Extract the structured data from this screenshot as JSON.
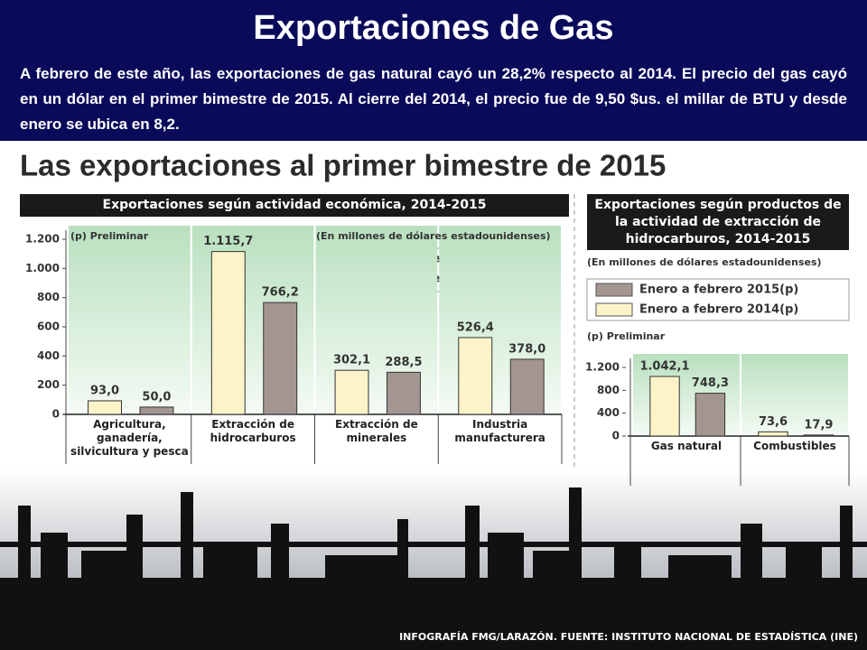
{
  "slide_title": "Exportaciones de Gas",
  "slide_text": "A febrero de este año, las exportaciones de gas natural cayó un 28,2% respecto al 2014. El precio del gas cayó en un dólar en el primer bimestre de 2015. Al cierre del 2014, el precio fue de 9,50 $us. el millar de BTU y desde enero se ubica en 8,2.",
  "infographic_title": "Las exportaciones al primer bimestre de 2015",
  "source": "INFOGRAFÍA FMG/LARAZÓN. FUENTE: INSTITUTO NACIONAL DE ESTADÍSTICA (INE)",
  "chart_data": [
    {
      "type": "bar",
      "title": "Exportaciones según actividad económica, 2014-2015",
      "note": "(p) Preliminar",
      "unit": "(En millones de dólares estadounidenses)",
      "categories": [
        "Agricultura, ganadería, silvicultura y pesca",
        "Extracción de hidrocarburos",
        "Extracción de minerales",
        "Industria manufacturera"
      ],
      "series": [
        {
          "name": "Enero a febrero 2015(p)",
          "color": "#a39690",
          "values": [
            50.0,
            766.2,
            288.5,
            378.0
          ],
          "value_labels": [
            "50,0",
            "766,2",
            "288,5",
            "378,0"
          ]
        },
        {
          "name": "Enero a febrero 2014(p)",
          "color": "#fdf3c8",
          "values": [
            93.0,
            1115.7,
            302.1,
            526.4
          ],
          "value_labels": [
            "93,0",
            "1.115,7",
            "302,1",
            "526,4"
          ]
        }
      ],
      "ylim": [
        0,
        1200
      ],
      "yticks": [
        0,
        200,
        400,
        600,
        800,
        {
          "value": 1000,
          "label": "1.000"
        },
        {
          "value": 1200,
          "label": "1.200"
        }
      ]
    },
    {
      "type": "bar",
      "title": "Exportaciones según productos de la actividad de extracción de hidrocarburos, 2014-2015",
      "note": "(p) Preliminar",
      "unit": "(En millones de dólares estadounidenses)",
      "categories": [
        "Gas natural",
        "Combustibles"
      ],
      "series": [
        {
          "name": "Enero a febrero 2015(p)",
          "color": "#a39690",
          "values": [
            748.3,
            17.9
          ],
          "value_labels": [
            "748,3",
            "17,9"
          ]
        },
        {
          "name": "Enero a febrero 2014(p)",
          "color": "#fdf3c8",
          "values": [
            1042.1,
            73.6
          ],
          "value_labels": [
            "1.042,1",
            "73,6"
          ]
        }
      ],
      "ylim": [
        0,
        1200
      ],
      "yticks": [
        0,
        400,
        800,
        {
          "value": 1200,
          "label": "1.200"
        }
      ]
    }
  ]
}
